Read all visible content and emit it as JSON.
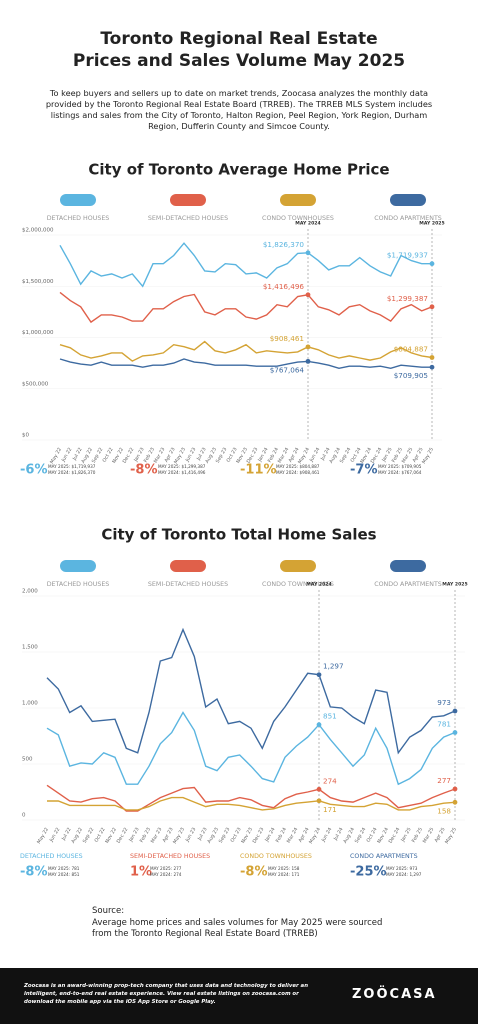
{
  "header": {
    "title": "Toronto Regional Real Estate Prices and Sales Volume May 2025",
    "intro": "To keep buyers and sellers up to date on market trends, Zoocasa analyzes the monthly data provided by the Toronto Regional Real Estate Board (TRREB). The TRREB MLS System includes listings and sales from the City of Toronto, Halton Region, Peel Region, York Region, Durham Region, Dufferin County and Simcoe County."
  },
  "chart_data": [
    {
      "type": "line",
      "title": "City of Toronto Average Home Price",
      "categories": [
        "May 22",
        "Jun 22",
        "Jul 22",
        "Aug 22",
        "Sep 22",
        "Oct 22",
        "Nov 22",
        "Dec 22",
        "Jan 23",
        "Feb 23",
        "Mar 23",
        "Apr 23",
        "May 23",
        "Jun 23",
        "Jul 23",
        "Aug 23",
        "Sep 23",
        "Oct 23",
        "Nov 23",
        "Dec 23",
        "Jan 24",
        "Feb 24",
        "Mar 24",
        "Apr 24",
        "May 24",
        "Jun 24",
        "Jul 24",
        "Aug 24",
        "Sep 24",
        "Oct 24",
        "Nov 24",
        "Dec 24",
        "Jan 25",
        "Feb 25",
        "Mar 25",
        "Apr 25",
        "May 25"
      ],
      "ylim": [
        0,
        2000000
      ],
      "yticks": [
        {
          "value": 0,
          "label": "$0"
        },
        {
          "value": 500000,
          "label": "$500,000"
        },
        {
          "value": 1000000,
          "label": "$1,000,000"
        },
        {
          "value": 1500000,
          "label": "$1,500,000"
        },
        {
          "value": 2000000,
          "label": "$2,000,000"
        }
      ],
      "grid": true,
      "markers": [
        {
          "category": "May 24",
          "label": "MAY 2024"
        },
        {
          "category": "May 25",
          "label": "MAY 2025"
        }
      ],
      "series": [
        {
          "name": "DETACHED HOUSES",
          "color": "#5bb5e0",
          "values": [
            1900000,
            1720000,
            1520000,
            1650000,
            1600000,
            1620000,
            1580000,
            1620000,
            1500000,
            1720000,
            1720000,
            1800000,
            1920000,
            1800000,
            1650000,
            1640000,
            1720000,
            1710000,
            1620000,
            1630000,
            1580000,
            1680000,
            1720000,
            1820000,
            1826370,
            1750000,
            1660000,
            1700000,
            1700000,
            1780000,
            1700000,
            1640000,
            1600000,
            1800000,
            1750000,
            1720000,
            1719937
          ],
          "value_labels": [
            null,
            null,
            null,
            null,
            null,
            null,
            null,
            null,
            null,
            null,
            null,
            null,
            null,
            null,
            null,
            null,
            null,
            null,
            null,
            null,
            null,
            null,
            null,
            null,
            "$1,826,370",
            null,
            null,
            null,
            null,
            null,
            null,
            null,
            null,
            null,
            null,
            null,
            "$1,719,937"
          ]
        },
        {
          "name": "SEMI-DETACHED HOUSES",
          "color": "#e0604a",
          "values": [
            1440000,
            1360000,
            1300000,
            1150000,
            1220000,
            1220000,
            1200000,
            1160000,
            1160000,
            1280000,
            1280000,
            1350000,
            1400000,
            1420000,
            1250000,
            1220000,
            1280000,
            1280000,
            1200000,
            1180000,
            1220000,
            1320000,
            1300000,
            1400000,
            1416496,
            1300000,
            1270000,
            1220000,
            1300000,
            1320000,
            1260000,
            1220000,
            1160000,
            1280000,
            1320000,
            1260000,
            1299387
          ],
          "value_labels": [
            null,
            null,
            null,
            null,
            null,
            null,
            null,
            null,
            null,
            null,
            null,
            null,
            null,
            null,
            null,
            null,
            null,
            null,
            null,
            null,
            null,
            null,
            null,
            null,
            "$1,416,496",
            null,
            null,
            null,
            null,
            null,
            null,
            null,
            null,
            null,
            null,
            null,
            "$1,299,387"
          ]
        },
        {
          "name": "CONDO TOWNHOUSES",
          "color": "#d4a334",
          "values": [
            930000,
            900000,
            830000,
            800000,
            820000,
            850000,
            850000,
            770000,
            820000,
            830000,
            850000,
            930000,
            910000,
            880000,
            960000,
            870000,
            850000,
            880000,
            930000,
            850000,
            870000,
            860000,
            850000,
            860000,
            908461,
            880000,
            830000,
            800000,
            820000,
            800000,
            780000,
            800000,
            860000,
            900000,
            850000,
            820000,
            804887
          ],
          "value_labels": [
            null,
            null,
            null,
            null,
            null,
            null,
            null,
            null,
            null,
            null,
            null,
            null,
            null,
            null,
            null,
            null,
            null,
            null,
            null,
            null,
            null,
            null,
            null,
            null,
            "$908,461",
            null,
            null,
            null,
            null,
            null,
            null,
            null,
            null,
            null,
            null,
            null,
            "$804,887"
          ]
        },
        {
          "name": "CONDO APARTMENTS",
          "color": "#3d6aa0",
          "values": [
            790000,
            760000,
            740000,
            730000,
            760000,
            730000,
            730000,
            730000,
            710000,
            730000,
            730000,
            750000,
            790000,
            760000,
            750000,
            730000,
            730000,
            730000,
            730000,
            720000,
            720000,
            720000,
            740000,
            760000,
            767064,
            750000,
            730000,
            700000,
            720000,
            720000,
            710000,
            720000,
            700000,
            730000,
            720000,
            710000,
            709905
          ],
          "value_labels": [
            null,
            null,
            null,
            null,
            null,
            null,
            null,
            null,
            null,
            null,
            null,
            null,
            null,
            null,
            null,
            null,
            null,
            null,
            null,
            null,
            null,
            null,
            null,
            null,
            "$767,064",
            null,
            null,
            null,
            null,
            null,
            null,
            null,
            null,
            null,
            null,
            null,
            "$709,905"
          ]
        }
      ],
      "summary": [
        {
          "change": "-6%",
          "lines": [
            "MAY 2025: $1,719,937",
            "MAY 2024: $1,826,370"
          ]
        },
        {
          "change": "-8%",
          "lines": [
            "MAY 2025: $1,299,387",
            "MAY 2024: $1,416,496"
          ]
        },
        {
          "change": "-11%",
          "lines": [
            "MAY 2025: $804,887",
            "MAY 2024: $908,461"
          ]
        },
        {
          "change": "-7%",
          "lines": [
            "MAY 2025: $709,905",
            "MAY 2024: $767,064"
          ]
        }
      ]
    },
    {
      "type": "line",
      "title": "City of Toronto Total Home Sales",
      "categories": [
        "May 22",
        "Jun 22",
        "Jul 22",
        "Aug 22",
        "Sep 22",
        "Oct 22",
        "Nov 22",
        "Dec 22",
        "Jan 23",
        "Feb 23",
        "Mar 23",
        "Apr 23",
        "May 23",
        "Jun 23",
        "Jul 23",
        "Aug 23",
        "Sep 23",
        "Oct 23",
        "Nov 23",
        "Dec 23",
        "Jan 24",
        "Feb 24",
        "Mar 24",
        "Apr 24",
        "May 24",
        "Jun 24",
        "Jul 24",
        "Aug 24",
        "Sep 24",
        "Oct 24",
        "Nov 24",
        "Dec 24",
        "Jan 25",
        "Feb 25",
        "Mar 25",
        "Apr 25",
        "May 25"
      ],
      "ylim": [
        0,
        2000
      ],
      "yticks": [
        0,
        500,
        {
          "value": 1000,
          "label": "1,000"
        },
        {
          "value": 1500,
          "label": "1,500"
        },
        {
          "value": 2000,
          "label": "2,000"
        }
      ],
      "grid": true,
      "markers": [
        {
          "category": "May 24",
          "label": "MAY 2024"
        },
        {
          "category": "May 25",
          "label": "MAY 2025"
        }
      ],
      "series": [
        {
          "name": "DETACHED HOUSES",
          "color": "#5bb5e0",
          "values": [
            820,
            760,
            480,
            510,
            500,
            600,
            560,
            320,
            320,
            480,
            680,
            780,
            960,
            800,
            480,
            440,
            560,
            580,
            480,
            370,
            340,
            560,
            660,
            740,
            851,
            720,
            600,
            480,
            580,
            820,
            640,
            320,
            370,
            450,
            640,
            740,
            781
          ],
          "value_labels": [
            null,
            null,
            null,
            null,
            null,
            null,
            null,
            null,
            null,
            null,
            null,
            null,
            null,
            null,
            null,
            null,
            null,
            null,
            null,
            null,
            null,
            null,
            null,
            null,
            "851",
            null,
            null,
            null,
            null,
            null,
            null,
            null,
            null,
            null,
            null,
            null,
            "781"
          ]
        },
        {
          "name": "SEMI-DETACHED HOUSES",
          "color": "#e0604a",
          "values": [
            310,
            240,
            170,
            160,
            190,
            200,
            170,
            80,
            80,
            140,
            200,
            240,
            280,
            290,
            160,
            170,
            170,
            200,
            180,
            130,
            110,
            190,
            230,
            250,
            274,
            200,
            170,
            160,
            200,
            240,
            200,
            110,
            130,
            150,
            200,
            240,
            277
          ],
          "value_labels": [
            null,
            null,
            null,
            null,
            null,
            null,
            null,
            null,
            null,
            null,
            null,
            null,
            null,
            null,
            null,
            null,
            null,
            null,
            null,
            null,
            null,
            null,
            null,
            null,
            "274",
            null,
            null,
            null,
            null,
            null,
            null,
            null,
            null,
            null,
            null,
            null,
            "277"
          ]
        },
        {
          "name": "CONDO TOWNHOUSES",
          "color": "#d4a334",
          "values": [
            170,
            170,
            130,
            130,
            130,
            130,
            130,
            90,
            90,
            120,
            170,
            200,
            200,
            160,
            120,
            140,
            140,
            130,
            110,
            90,
            100,
            130,
            150,
            160,
            171,
            140,
            130,
            120,
            120,
            150,
            140,
            90,
            90,
            120,
            130,
            150,
            158
          ],
          "value_labels": [
            null,
            null,
            null,
            null,
            null,
            null,
            null,
            null,
            null,
            null,
            null,
            null,
            null,
            null,
            null,
            null,
            null,
            null,
            null,
            null,
            null,
            null,
            null,
            null,
            "171",
            null,
            null,
            null,
            null,
            null,
            null,
            null,
            null,
            null,
            null,
            null,
            "158"
          ]
        },
        {
          "name": "CONDO APARTMENTS",
          "color": "#3d6aa0",
          "values": [
            1270,
            1170,
            960,
            1020,
            880,
            890,
            900,
            640,
            600,
            960,
            1420,
            1450,
            1700,
            1460,
            1010,
            1080,
            860,
            880,
            820,
            640,
            880,
            1010,
            1160,
            1310,
            1297,
            1010,
            1000,
            920,
            860,
            1160,
            1140,
            600,
            740,
            800,
            920,
            930,
            973
          ],
          "value_labels": [
            null,
            null,
            null,
            null,
            null,
            null,
            null,
            null,
            null,
            null,
            null,
            null,
            null,
            null,
            null,
            null,
            null,
            null,
            null,
            null,
            null,
            null,
            null,
            null,
            "1,297",
            null,
            null,
            null,
            null,
            null,
            null,
            null,
            null,
            null,
            null,
            null,
            "973"
          ]
        }
      ],
      "summary": [
        {
          "name": "DETACHED HOUSES",
          "change": "-8%",
          "lines": [
            "MAY 2025: 781",
            "MAY 2024: 851"
          ]
        },
        {
          "name": "SEMI-DETACHED HOUSES",
          "change": "1%",
          "lines": [
            "MAY 2025: 277",
            "MAY 2024: 274"
          ]
        },
        {
          "name": "CONDO TOWNHOUSES",
          "change": "-8%",
          "lines": [
            "MAY 2025: 158",
            "MAY 2024: 171"
          ]
        },
        {
          "name": "CONDO APARTMENTS",
          "change": "-25%",
          "lines": [
            "MAY 2025: 973",
            "MAY 2024: 1,297"
          ]
        }
      ]
    }
  ],
  "source": {
    "heading": "Source:",
    "text": "Average home prices and sales volumes for May 2025 were sourced from the Toronto Regional Real Estate Board (TRREB)"
  },
  "footer": {
    "text": "Zoocasa is an award-winning prop-tech company that uses data and technology to deliver an intelligent, end-to-end real estate experience. View real estate listings on zoocasa.com or download the mobile app via the iOS App Store or Google Play.",
    "logo": "ZOÖCASA"
  }
}
